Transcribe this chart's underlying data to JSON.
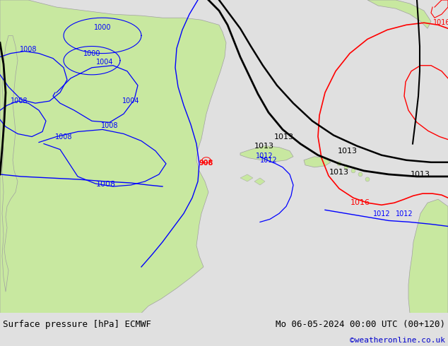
{
  "fig_width": 6.34,
  "fig_height": 4.9,
  "dpi": 100,
  "bg_color": "#e0e0e0",
  "map_ocean_color": "#e8e8e8",
  "land_color": "#c8e8a0",
  "land_edge_color": "#a0a0a0",
  "footer_left": "Surface pressure [hPa] ECMWF",
  "footer_right": "Mo 06-05-2024 00:00 UTC (00+120)",
  "footer_url": "©weatheronline.co.uk",
  "footer_fontsize": 9,
  "title_color": "#000000",
  "url_color": "#0000cc",
  "blue": "#0000ff",
  "red": "#ff0000",
  "black": "#000000"
}
